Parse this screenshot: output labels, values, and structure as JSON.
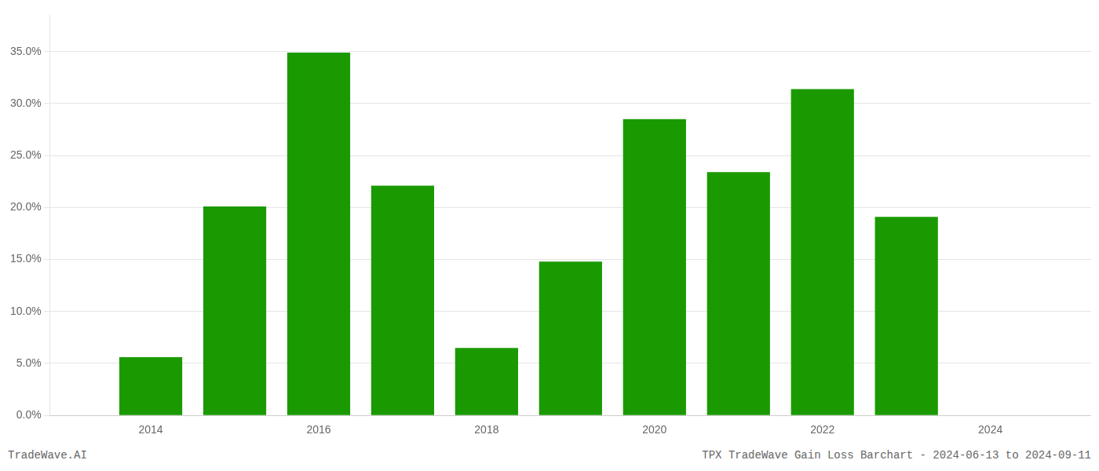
{
  "chart_data": {
    "type": "bar",
    "x": [
      2014,
      2015,
      2016,
      2017,
      2018,
      2019,
      2020,
      2021,
      2022,
      2023
    ],
    "values": [
      0.056,
      0.201,
      0.349,
      0.221,
      0.065,
      0.148,
      0.285,
      0.234,
      0.314,
      0.191
    ],
    "color": "#1a9a00",
    "xlim": [
      2012.8,
      2025.2
    ],
    "xticks": [
      2014,
      2016,
      2018,
      2020,
      2022,
      2024
    ],
    "ylim": [
      0,
      0.385
    ],
    "yticks": [
      {
        "value": 0.0,
        "label": "0.0%"
      },
      {
        "value": 0.05,
        "label": "5.0%"
      },
      {
        "value": 0.1,
        "label": "10.0%"
      },
      {
        "value": 0.15,
        "label": "15.0%"
      },
      {
        "value": 0.2,
        "label": "20.0%"
      },
      {
        "value": 0.25,
        "label": "25.0%"
      },
      {
        "value": 0.3,
        "label": "30.0%"
      },
      {
        "value": 0.35,
        "label": "35.0%"
      }
    ],
    "grid": true,
    "annotations": [
      "TradeWave.AI",
      "TPX TradeWave Gain Loss Barchart - 2024-06-13 to 2024-09-11"
    ]
  }
}
